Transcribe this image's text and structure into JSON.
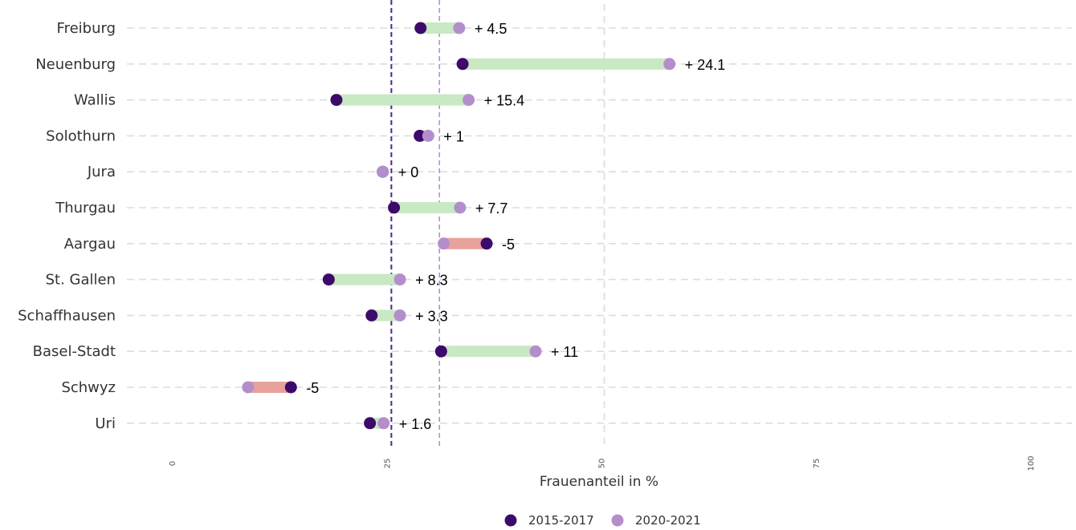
{
  "chart_data": {
    "type": "dumbbell",
    "xlabel": "Frauenanteil in %",
    "xlim": [
      0,
      100
    ],
    "xticks": [
      "0",
      "25",
      "50",
      "75",
      "100"
    ],
    "grid": true,
    "legend_position": "bottom",
    "colors": {
      "start": "#3d0a6b",
      "end": "#b48ecb",
      "increase": "#c9e8c4",
      "decrease": "#e8a19b",
      "ref_start_line": "#4b2a84",
      "ref_end_line": "#b48ecb",
      "grid": "#dddddd"
    },
    "series": [
      {
        "name": "2015-2017"
      },
      {
        "name": "2020-2021"
      }
    ],
    "reference_lines": [
      25.2,
      30.8
    ],
    "rows": [
      {
        "canton": "Freiburg",
        "start": 28.6,
        "end": 33.1,
        "label": "+ 4.5"
      },
      {
        "canton": "Neuenburg",
        "start": 33.5,
        "end": 57.6,
        "label": "+ 24.1"
      },
      {
        "canton": "Wallis",
        "start": 18.8,
        "end": 34.2,
        "label": "+ 15.4"
      },
      {
        "canton": "Solothurn",
        "start": 28.5,
        "end": 29.5,
        "label": "+ 1"
      },
      {
        "canton": "Jura",
        "start": 24.2,
        "end": 24.2,
        "label": "+ 0"
      },
      {
        "canton": "Thurgau",
        "start": 25.5,
        "end": 33.2,
        "label": "+ 7.7"
      },
      {
        "canton": "Aargau",
        "start": 36.3,
        "end": 31.3,
        "label": "-5"
      },
      {
        "canton": "St. Gallen",
        "start": 17.9,
        "end": 26.2,
        "label": "+ 8.3"
      },
      {
        "canton": "Schaffhausen",
        "start": 22.9,
        "end": 26.2,
        "label": "+ 3.3"
      },
      {
        "canton": "Basel-Stadt",
        "start": 31.0,
        "end": 42.0,
        "label": "+ 11"
      },
      {
        "canton": "Schwyz",
        "start": 13.5,
        "end": 8.5,
        "label": "-5"
      },
      {
        "canton": "Uri",
        "start": 22.7,
        "end": 24.3,
        "label": "+ 1.6"
      }
    ]
  }
}
